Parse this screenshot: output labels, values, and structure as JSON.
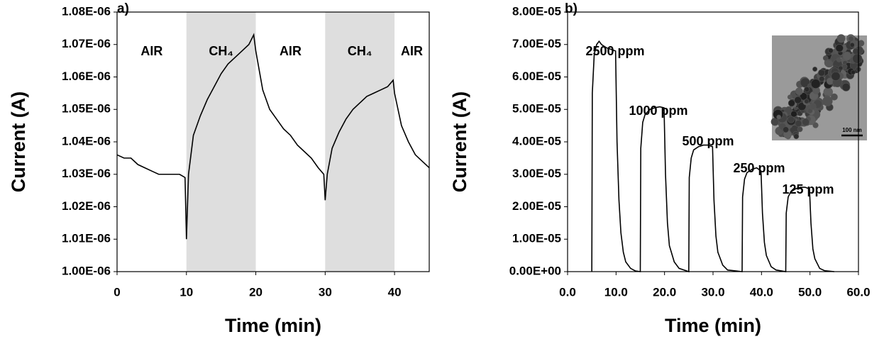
{
  "chart_data": [
    {
      "type": "line",
      "panel_label": "a)",
      "x_label": "Time (min)",
      "y_label": "Current (A)",
      "xlim": [
        0,
        45
      ],
      "ylim": [
        1e-06,
        1.08e-06
      ],
      "xticks": [
        0,
        10,
        20,
        30,
        40
      ],
      "yticks": [
        {
          "value": 1e-06,
          "label": "1.00E-06"
        },
        {
          "value": 1.01e-06,
          "label": "1.01E-06"
        },
        {
          "value": 1.02e-06,
          "label": "1.02E-06"
        },
        {
          "value": 1.03e-06,
          "label": "1.03E-06"
        },
        {
          "value": 1.04e-06,
          "label": "1.04E-06"
        },
        {
          "value": 1.05e-06,
          "label": "1.05E-06"
        },
        {
          "value": 1.06e-06,
          "label": "1.06E-06"
        },
        {
          "value": 1.07e-06,
          "label": "1.07E-06"
        },
        {
          "value": 1.08e-06,
          "label": "1.08E-06"
        }
      ],
      "periods": [
        {
          "label": "AIR",
          "start": 0,
          "end": 10,
          "shaded": false
        },
        {
          "label": "CH₄",
          "start": 10,
          "end": 20,
          "shaded": true
        },
        {
          "label": "AIR",
          "start": 20,
          "end": 30,
          "shaded": false
        },
        {
          "label": "CH₄",
          "start": 30,
          "end": 40,
          "shaded": true
        },
        {
          "label": "AIR",
          "start": 40,
          "end": 45,
          "shaded": false
        }
      ],
      "shade_color": "#dedede",
      "color": "#000000",
      "x": [
        0,
        1,
        2,
        3,
        4,
        5,
        6,
        7,
        8,
        9,
        9.8,
        10,
        10.3,
        11,
        12,
        13,
        14,
        15,
        16,
        17,
        18,
        19,
        19.7,
        20,
        21,
        22,
        23,
        24,
        25,
        26,
        27,
        28,
        29,
        29.8,
        30,
        30.3,
        31,
        32,
        33,
        34,
        35,
        36,
        37,
        38,
        39,
        39.8,
        40,
        41,
        42,
        43,
        44,
        45
      ],
      "values": [
        1.036e-06,
        1.035e-06,
        1.035e-06,
        1.033e-06,
        1.032e-06,
        1.031e-06,
        1.03e-06,
        1.03e-06,
        1.03e-06,
        1.03e-06,
        1.029e-06,
        1.01e-06,
        1.03e-06,
        1.042e-06,
        1.048e-06,
        1.053e-06,
        1.057e-06,
        1.061e-06,
        1.064e-06,
        1.066e-06,
        1.068e-06,
        1.07e-06,
        1.073e-06,
        1.068e-06,
        1.056e-06,
        1.05e-06,
        1.047e-06,
        1.044e-06,
        1.042e-06,
        1.039e-06,
        1.037e-06,
        1.035e-06,
        1.032e-06,
        1.03e-06,
        1.022e-06,
        1.03e-06,
        1.038e-06,
        1.043e-06,
        1.047e-06,
        1.05e-06,
        1.052e-06,
        1.054e-06,
        1.055e-06,
        1.056e-06,
        1.057e-06,
        1.059e-06,
        1.055e-06,
        1.045e-06,
        1.04e-06,
        1.036e-06,
        1.034e-06,
        1.032e-06
      ]
    },
    {
      "type": "line",
      "panel_label": "b)",
      "x_label": "Time (min)",
      "y_label": "Current (A)",
      "xlim": [
        0,
        60
      ],
      "ylim": [
        0,
        8e-05
      ],
      "xticks": [
        {
          "value": 0,
          "label": "0.0"
        },
        {
          "value": 10,
          "label": "10.0"
        },
        {
          "value": 20,
          "label": "20.0"
        },
        {
          "value": 30,
          "label": "30.0"
        },
        {
          "value": 40,
          "label": "40.0"
        },
        {
          "value": 50,
          "label": "50.0"
        },
        {
          "value": 60,
          "label": "60.0"
        }
      ],
      "yticks": [
        {
          "value": 0,
          "label": "0.00E+00"
        },
        {
          "value": 1e-05,
          "label": "1.00E-05"
        },
        {
          "value": 2e-05,
          "label": "2.00E-05"
        },
        {
          "value": 3e-05,
          "label": "3.00E-05"
        },
        {
          "value": 4e-05,
          "label": "4.00E-05"
        },
        {
          "value": 5e-05,
          "label": "5.00E-05"
        },
        {
          "value": 6e-05,
          "label": "6.00E-05"
        },
        {
          "value": 7e-05,
          "label": "7.00E-05"
        },
        {
          "value": 8e-05,
          "label": "8.00E-05"
        }
      ],
      "annotations": [
        "2500 ppm",
        "1000 ppm",
        "500 ppm",
        "250 ppm",
        "125 ppm"
      ],
      "inset_scale_label": "100 nm",
      "color": "#000000",
      "x": [
        5,
        5.1,
        5.5,
        6,
        6.5,
        7,
        8,
        9,
        9.9,
        10.2,
        10.6,
        11,
        11.5,
        12,
        13,
        14,
        15,
        15.1,
        15.5,
        16,
        17,
        18,
        19,
        19.9,
        20.2,
        20.6,
        21,
        22,
        23,
        25,
        25.1,
        25.5,
        26,
        27,
        28,
        29,
        29.9,
        30.2,
        30.6,
        31,
        32,
        33,
        36,
        36.1,
        36.5,
        37,
        38,
        39,
        39.9,
        40.2,
        40.6,
        41,
        42,
        43,
        45,
        45.1,
        45.5,
        46,
        47,
        48,
        49,
        49.9,
        50.2,
        50.6,
        51,
        52,
        53,
        55
      ],
      "values": [
        0,
        5.5e-05,
        6.7e-05,
        7e-05,
        7.1e-05,
        7e-05,
        6.9e-05,
        6.85e-05,
        6.8e-05,
        4e-05,
        2.2e-05,
        1.2e-05,
        6e-06,
        3e-06,
        1e-06,
        2e-07,
        0,
        3.8e-05,
        4.6e-05,
        4.85e-05,
        5e-05,
        5.05e-05,
        5.08e-05,
        5.05e-05,
        3e-05,
        1.5e-05,
        8e-06,
        3e-06,
        1e-06,
        0,
        2.9e-05,
        3.5e-05,
        3.75e-05,
        3.85e-05,
        3.9e-05,
        3.9e-05,
        3.85e-05,
        2.2e-05,
        1.1e-05,
        6e-06,
        2e-06,
        5e-07,
        0,
        2.3e-05,
        2.85e-05,
        3.05e-05,
        3.15e-05,
        3.2e-05,
        3.1e-05,
        1.8e-05,
        9e-06,
        5e-06,
        1.5e-06,
        5e-07,
        0,
        1.8e-05,
        2.3e-05,
        2.45e-05,
        2.55e-05,
        2.6e-05,
        2.6e-05,
        2.55e-05,
        1.5e-05,
        7e-06,
        4e-06,
        1e-06,
        3e-07,
        0
      ]
    }
  ]
}
